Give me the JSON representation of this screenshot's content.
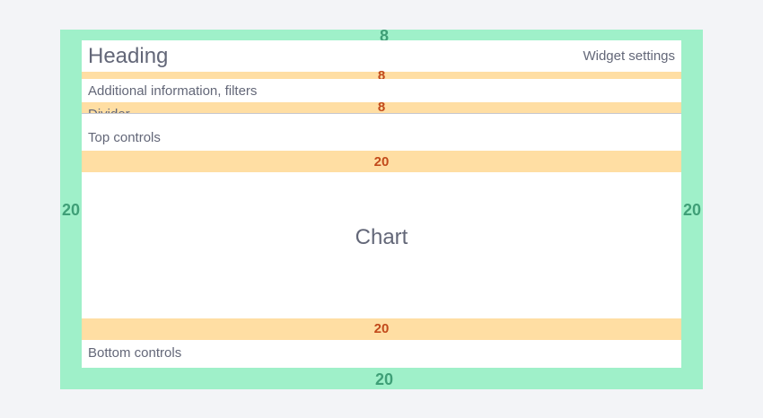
{
  "colors": {
    "background": "#f3f4f7",
    "padding_area": "#9ff0c9",
    "gap_area": "#ffdea3",
    "content": "#ffffff",
    "text": "#636778",
    "padding_label": "#3f9f77",
    "gap_label": "#c24a1b",
    "divider": "#c6c8cf"
  },
  "sections": {
    "heading": "Heading",
    "widget_settings": "Widget settings",
    "additional_info": "Additional information, filters",
    "divider": "Divider",
    "top_controls": "Top controls",
    "chart": "Chart",
    "bottom_controls": "Bottom controls"
  },
  "padding": {
    "top": "8",
    "left": "20",
    "right": "20",
    "bottom": "20"
  },
  "gaps": {
    "after_heading": "8",
    "after_info": "8",
    "after_top_controls": "20",
    "after_chart": "20"
  }
}
